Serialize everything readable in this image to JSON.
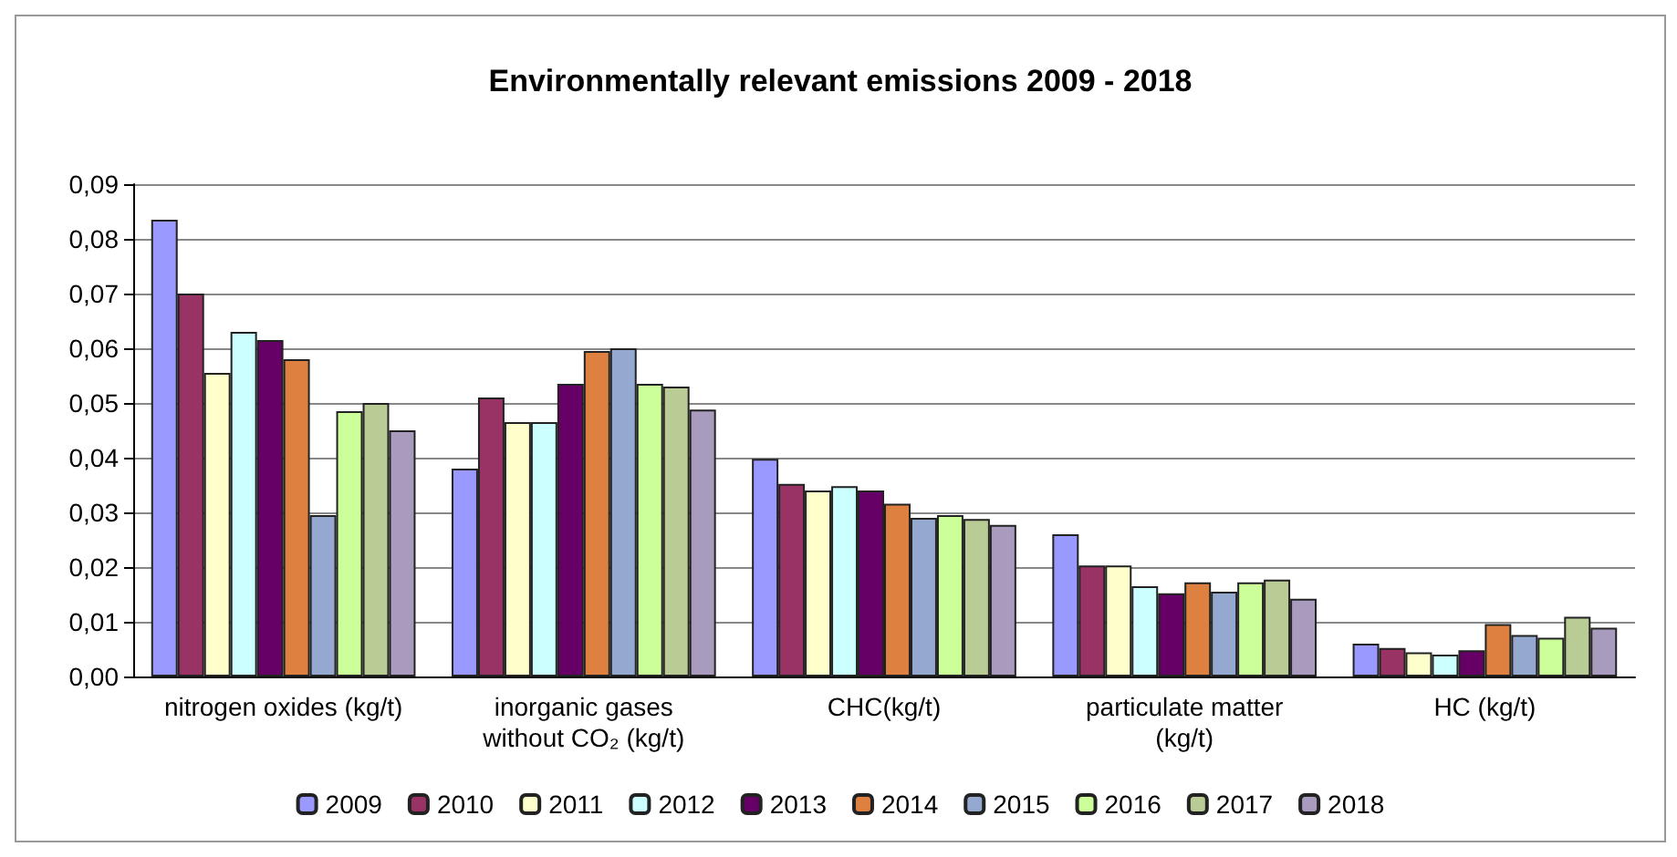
{
  "chart_data": {
    "type": "bar",
    "title": "Environmentally relevant emissions 2009 - 2018",
    "categories": [
      "nitrogen oxides (kg/t)",
      "inorganic gases\nwithout CO₂ (kg/t)",
      "CHC(kg/t)",
      "particulate matter\n(kg/t)",
      "HC (kg/t)"
    ],
    "series": [
      {
        "name": "2009",
        "color": "#9999ff",
        "values": [
          0.0835,
          0.038,
          0.0398,
          0.026,
          0.006
        ]
      },
      {
        "name": "2010",
        "color": "#993366",
        "values": [
          0.07,
          0.051,
          0.0352,
          0.0203,
          0.0052
        ]
      },
      {
        "name": "2011",
        "color": "#ffffcc",
        "values": [
          0.0555,
          0.0465,
          0.034,
          0.0203,
          0.0044
        ]
      },
      {
        "name": "2012",
        "color": "#ccffff",
        "values": [
          0.063,
          0.0465,
          0.0348,
          0.0165,
          0.004
        ]
      },
      {
        "name": "2013",
        "color": "#660066",
        "values": [
          0.0615,
          0.0535,
          0.034,
          0.0152,
          0.0048
        ]
      },
      {
        "name": "2014",
        "color": "#dd8040",
        "values": [
          0.058,
          0.0595,
          0.0316,
          0.0172,
          0.0096
        ]
      },
      {
        "name": "2015",
        "color": "#95a8cf",
        "values": [
          0.0295,
          0.06,
          0.029,
          0.0155,
          0.0076
        ]
      },
      {
        "name": "2016",
        "color": "#ccff99",
        "values": [
          0.0485,
          0.0535,
          0.0295,
          0.0172,
          0.0071
        ]
      },
      {
        "name": "2017",
        "color": "#b9cc96",
        "values": [
          0.05,
          0.053,
          0.0288,
          0.0177,
          0.0109
        ]
      },
      {
        "name": "2018",
        "color": "#a99bbd",
        "values": [
          0.045,
          0.0488,
          0.0277,
          0.0142,
          0.0089
        ]
      }
    ],
    "ylim": [
      0,
      0.09
    ],
    "yticks": [
      {
        "value": 0,
        "label": "0,00"
      },
      {
        "value": 0.01,
        "label": "0,01"
      },
      {
        "value": 0.02,
        "label": "0,02"
      },
      {
        "value": 0.03,
        "label": "0,03"
      },
      {
        "value": 0.04,
        "label": "0,04"
      },
      {
        "value": 0.05,
        "label": "0,05"
      },
      {
        "value": 0.06,
        "label": "0,06"
      },
      {
        "value": 0.07,
        "label": "0,07"
      },
      {
        "value": 0.08,
        "label": "0,08"
      },
      {
        "value": 0.09,
        "label": "0,09"
      }
    ],
    "grid": "y",
    "legend": "bottom"
  }
}
